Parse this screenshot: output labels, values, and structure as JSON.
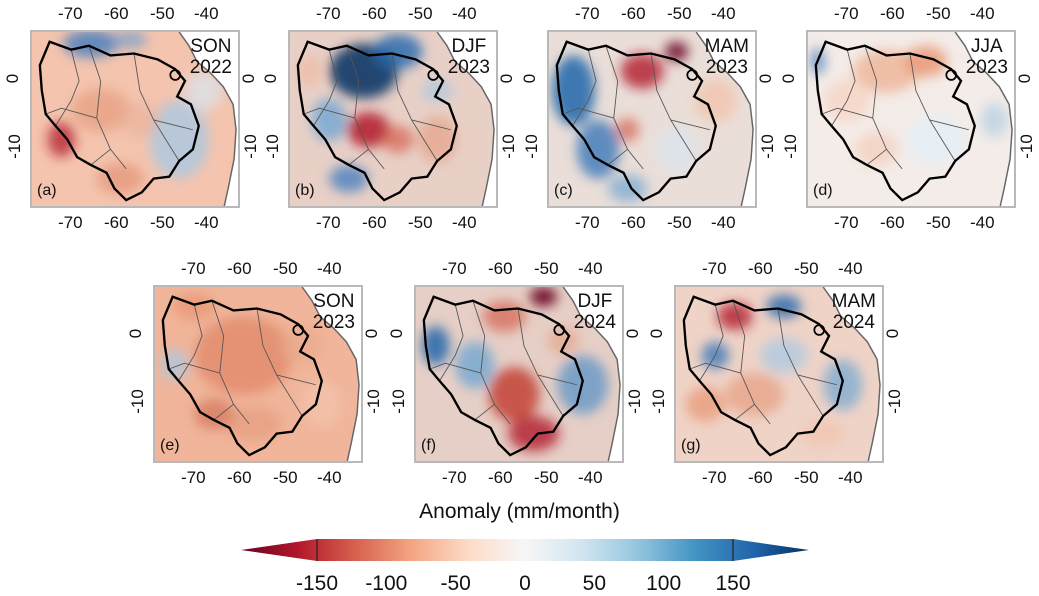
{
  "panels": [
    {
      "id": "a",
      "label": "(a)",
      "season": "SON",
      "year": "2022"
    },
    {
      "id": "b",
      "label": "(b)",
      "season": "DJF",
      "year": "2023"
    },
    {
      "id": "c",
      "label": "(c)",
      "season": "MAM",
      "year": "2023"
    },
    {
      "id": "d",
      "label": "(d)",
      "season": "JJA",
      "year": "2023"
    },
    {
      "id": "e",
      "label": "(e)",
      "season": "SON",
      "year": "2023"
    },
    {
      "id": "f",
      "label": "(f)",
      "season": "DJF",
      "year": "2024"
    },
    {
      "id": "g",
      "label": "(g)",
      "season": "MAM",
      "year": "2024"
    }
  ],
  "lon_ticks": [
    "-70",
    "-60",
    "-50",
    "-40"
  ],
  "lat_ticks": [
    "0",
    "-10"
  ],
  "colorbar": {
    "title": "Anomaly (mm/month)",
    "ticks": [
      "-150",
      "-100",
      "-50",
      "0",
      "50",
      "100",
      "150"
    ],
    "min": -150,
    "max": 150,
    "colors": [
      "#67001f",
      "#b2182b",
      "#d6604d",
      "#f4a582",
      "#fddbc7",
      "#f7f7f7",
      "#d1e5f0",
      "#92c5de",
      "#4393c3",
      "#2166ac",
      "#053061"
    ]
  },
  "colors": {
    "dry": "#c0392b",
    "wet": "#2166ac",
    "frame": "#b9b9b9",
    "border": "#000000"
  }
}
